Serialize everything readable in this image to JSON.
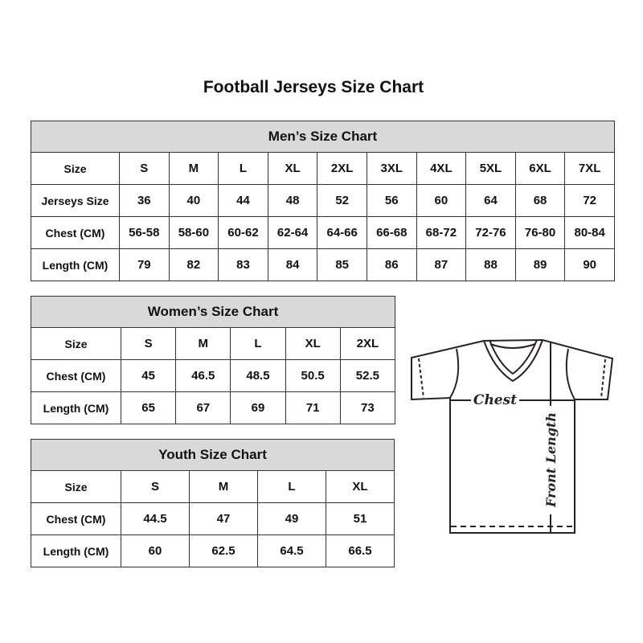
{
  "title": "Football Jerseys Size Chart",
  "men": {
    "heading": "Men’s Size Chart",
    "rows": [
      {
        "label": "Size",
        "values": [
          "S",
          "M",
          "L",
          "XL",
          "2XL",
          "3XL",
          "4XL",
          "5XL",
          "6XL",
          "7XL"
        ]
      },
      {
        "label": "Jerseys Size",
        "values": [
          "36",
          "40",
          "44",
          "48",
          "52",
          "56",
          "60",
          "64",
          "68",
          "72"
        ]
      },
      {
        "label": "Chest (CM)",
        "values": [
          "56-58",
          "58-60",
          "60-62",
          "62-64",
          "64-66",
          "66-68",
          "68-72",
          "72-76",
          "76-80",
          "80-84"
        ]
      },
      {
        "label": "Length (CM)",
        "values": [
          "79",
          "82",
          "83",
          "84",
          "85",
          "86",
          "87",
          "88",
          "89",
          "90"
        ]
      }
    ]
  },
  "women": {
    "heading": "Women’s Size Chart",
    "rows": [
      {
        "label": "Size",
        "values": [
          "S",
          "M",
          "L",
          "XL",
          "2XL"
        ]
      },
      {
        "label": "Chest (CM)",
        "values": [
          "45",
          "46.5",
          "48.5",
          "50.5",
          "52.5"
        ]
      },
      {
        "label": "Length (CM)",
        "values": [
          "65",
          "67",
          "69",
          "71",
          "73"
        ]
      }
    ]
  },
  "youth": {
    "heading": "Youth Size Chart",
    "rows": [
      {
        "label": "Size",
        "values": [
          "S",
          "M",
          "L",
          "XL"
        ]
      },
      {
        "label": "Chest (CM)",
        "values": [
          "44.5",
          "47",
          "49",
          "51"
        ]
      },
      {
        "label": "Length (CM)",
        "values": [
          "60",
          "62.5",
          "64.5",
          "66.5"
        ]
      }
    ]
  },
  "diagram": {
    "chest_label": "Chest",
    "length_label": "Front Length"
  }
}
